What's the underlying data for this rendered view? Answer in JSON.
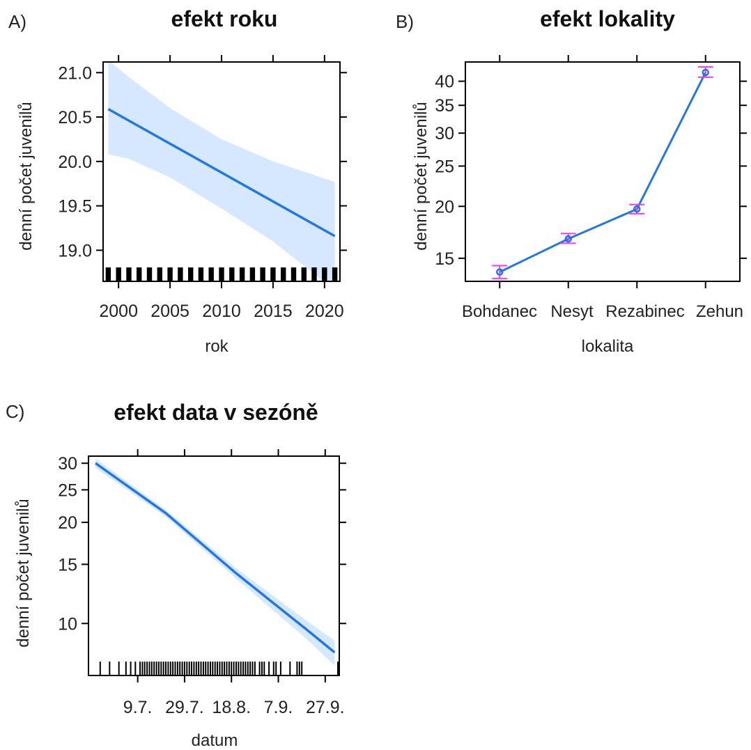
{
  "colors": {
    "line": "#1f78e6",
    "band": "#d6e8ff",
    "errorbar": "#ff33ff",
    "frame": "#000000"
  },
  "chart_data": [
    {
      "panel_label": "A)",
      "type": "line",
      "title": "efekt roku",
      "xlabel": "rok",
      "ylabel": "denní počet juvenilů",
      "xlim": [
        1998.5,
        2021.5
      ],
      "ylim": [
        18.65,
        21.12
      ],
      "x_ticks": [
        2000,
        2005,
        2010,
        2015,
        2020
      ],
      "x_tick_labels": [
        "2000",
        "2005",
        "2010",
        "2015",
        "2020"
      ],
      "y_ticks": [
        19.0,
        19.5,
        20.0,
        20.5,
        21.0
      ],
      "y_tick_labels": [
        "19.0",
        "19.5",
        "20.0",
        "20.5",
        "21.0"
      ],
      "fit": {
        "x": [
          1999,
          2021
        ],
        "y": [
          20.59,
          19.16
        ]
      },
      "band": {
        "x": [
          1999,
          2001,
          2005,
          2010,
          2015,
          2021
        ],
        "lower": [
          20.08,
          20.03,
          19.82,
          19.47,
          19.1,
          18.55
        ],
        "upper": [
          21.14,
          20.95,
          20.6,
          20.25,
          20.0,
          19.77
        ]
      },
      "rug_x": [
        1999,
        2000,
        2001,
        2002,
        2003,
        2004,
        2005,
        2006,
        2007,
        2008,
        2009,
        2010,
        2011,
        2012,
        2013,
        2014,
        2015,
        2016,
        2017,
        2018,
        2019,
        2020,
        2021
      ]
    },
    {
      "panel_label": "B)",
      "type": "line",
      "title": "efekt lokality",
      "xlabel": "lokalita",
      "ylabel": "denní počet juvenilů",
      "scale": "log",
      "categories": [
        "Bohdanec",
        "Nesyt",
        "Rezabinec",
        "Zehun"
      ],
      "values": [
        13.9,
        16.7,
        19.7,
        42.0
      ],
      "lower": [
        13.4,
        16.3,
        19.2,
        40.9
      ],
      "upper": [
        14.4,
        17.2,
        20.2,
        43.3
      ],
      "ylim": [
        13.2,
        44.5
      ],
      "y_ticks": [
        15,
        20,
        25,
        30,
        35,
        40
      ],
      "y_tick_labels": [
        "15",
        "20",
        "25",
        "30",
        "35",
        "40"
      ]
    },
    {
      "panel_label": "C)",
      "type": "line",
      "title": "efekt data v sezóně",
      "xlabel": "datum",
      "ylabel": "denní počet juvenilů",
      "scale": "log",
      "xlim": [
        -13,
        94
      ],
      "ylim": [
        7.0,
        31.5
      ],
      "x_ticks": [
        8,
        28,
        48,
        68,
        88
      ],
      "x_tick_labels": [
        "9.7.",
        "29.7.",
        "18.8.",
        "7.9.",
        "27.9."
      ],
      "y_ticks": [
        10,
        15,
        20,
        25,
        30
      ],
      "y_tick_labels": [
        "10",
        "15",
        "20",
        "25",
        "30"
      ],
      "fit": {
        "x": [
          -10,
          20,
          50,
          80,
          92
        ],
        "y": [
          30.0,
          21.3,
          14.1,
          9.6,
          8.2
        ]
      },
      "band": {
        "x": [
          -10,
          20,
          50,
          80,
          92
        ],
        "lower": [
          29.0,
          20.8,
          13.6,
          9.0,
          7.5
        ],
        "upper": [
          31.0,
          21.8,
          14.6,
          10.2,
          8.9
        ]
      },
      "rug_x": [
        -8,
        -4,
        0,
        3,
        5,
        7,
        9,
        10,
        11,
        12,
        13,
        14,
        15,
        16,
        17,
        18,
        19,
        20,
        21,
        22,
        23,
        24,
        25,
        26,
        27,
        28,
        29,
        30,
        31,
        32,
        33,
        34,
        35,
        36,
        37,
        38,
        39,
        40,
        41,
        42,
        43,
        44,
        45,
        46,
        47,
        48,
        49,
        50,
        51,
        52,
        53,
        54,
        55,
        56,
        57,
        58,
        60,
        61,
        62,
        64,
        66,
        67,
        69,
        73,
        76,
        77,
        78,
        94
      ]
    }
  ]
}
